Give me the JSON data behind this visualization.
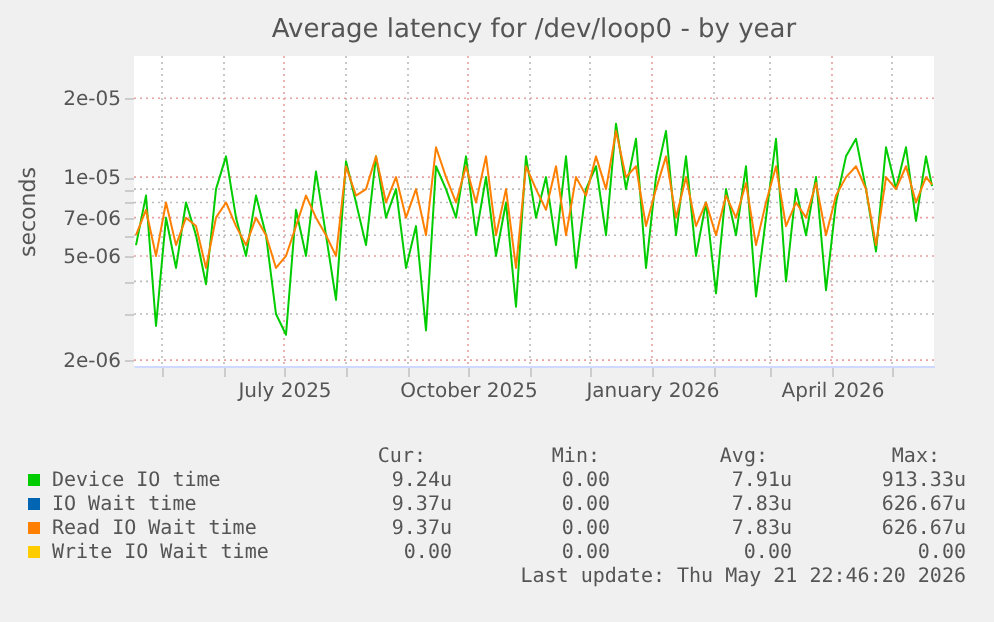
{
  "chart_data": {
    "type": "line",
    "title": "Average latency for /dev/loop0 - by year",
    "ylabel": "seconds",
    "log": true,
    "grid": true,
    "legend": "bottom",
    "line_style": "solid",
    "marker": "none",
    "x": [
      "2025-04-18",
      "2025-04-23",
      "2025-04-28",
      "2025-05-03",
      "2025-05-08",
      "2025-05-13",
      "2025-05-18",
      "2025-05-23",
      "2025-05-28",
      "2025-06-02",
      "2025-06-07",
      "2025-06-12",
      "2025-06-17",
      "2025-06-22",
      "2025-06-27",
      "2025-07-02",
      "2025-07-07",
      "2025-07-12",
      "2025-07-17",
      "2025-07-22",
      "2025-07-27",
      "2025-08-01",
      "2025-08-06",
      "2025-08-11",
      "2025-08-16",
      "2025-08-21",
      "2025-08-26",
      "2025-08-31",
      "2025-09-05",
      "2025-09-10",
      "2025-09-15",
      "2025-09-20",
      "2025-09-25",
      "2025-09-30",
      "2025-10-05",
      "2025-10-10",
      "2025-10-15",
      "2025-10-20",
      "2025-10-25",
      "2025-10-30",
      "2025-11-04",
      "2025-11-09",
      "2025-11-14",
      "2025-11-19",
      "2025-11-24",
      "2025-11-29",
      "2025-12-04",
      "2025-12-09",
      "2025-12-14",
      "2025-12-19",
      "2025-12-24",
      "2025-12-29",
      "2026-01-03",
      "2026-01-08",
      "2026-01-13",
      "2026-01-18",
      "2026-01-23",
      "2026-01-28",
      "2026-02-02",
      "2026-02-07",
      "2026-02-12",
      "2026-02-17",
      "2026-02-22",
      "2026-02-27",
      "2026-03-04",
      "2026-03-09",
      "2026-03-14",
      "2026-03-19",
      "2026-03-24",
      "2026-03-29",
      "2026-04-03",
      "2026-04-08",
      "2026-04-13",
      "2026-04-18",
      "2026-04-23",
      "2026-04-28",
      "2026-05-03",
      "2026-05-08",
      "2026-05-13",
      "2026-05-18",
      "2026-05-21"
    ],
    "series": [
      {
        "name": "Device IO time",
        "color": "#00cc00",
        "values": [
          5.5e-06,
          8.5e-06,
          2.7e-06,
          7e-06,
          4.5e-06,
          8e-06,
          6e-06,
          3.9e-06,
          9e-06,
          1.2e-05,
          7e-06,
          5e-06,
          8.5e-06,
          6e-06,
          3e-06,
          2.5e-06,
          7.5e-06,
          5e-06,
          1.05e-05,
          6e-06,
          3.4e-06,
          1.15e-05,
          8e-06,
          5.5e-06,
          1.2e-05,
          7e-06,
          9e-06,
          4.5e-06,
          6.5e-06,
          2.6e-06,
          1.1e-05,
          9e-06,
          7e-06,
          1.2e-05,
          6e-06,
          1e-05,
          5e-06,
          8e-06,
          3.2e-06,
          1.2e-05,
          7e-06,
          1e-05,
          5.5e-06,
          1.2e-05,
          4.5e-06,
          9e-06,
          1.1e-05,
          6e-06,
          1.6e-05,
          9e-06,
          1.4e-05,
          4.5e-06,
          1e-05,
          1.5e-05,
          6e-06,
          1.2e-05,
          5e-06,
          8e-06,
          3.6e-06,
          9e-06,
          6e-06,
          1.1e-05,
          3.5e-06,
          7e-06,
          1.4e-05,
          4e-06,
          9e-06,
          6e-06,
          1e-05,
          3.7e-06,
          8e-06,
          1.2e-05,
          1.4e-05,
          9e-06,
          5.2e-06,
          1.3e-05,
          9e-06,
          1.3e-05,
          6.8e-06,
          1.2e-05,
          9.24e-06
        ]
      },
      {
        "name": "IO Wait time",
        "color": "#0066b3",
        "values": [
          null,
          null,
          null,
          null,
          null,
          null,
          null,
          null,
          null,
          null,
          null,
          null,
          null,
          null,
          null,
          null,
          null,
          null,
          null,
          null,
          null,
          null,
          null,
          null,
          null,
          null,
          null,
          null,
          null,
          null,
          null,
          null,
          null,
          null,
          null,
          null,
          null,
          null,
          null,
          null,
          null,
          null,
          null,
          null,
          null,
          null,
          null,
          null,
          null,
          null,
          null,
          null,
          null,
          null,
          null,
          null,
          null,
          null,
          null,
          null,
          null,
          null,
          null,
          null,
          null,
          null,
          null,
          null,
          null,
          null,
          null,
          null,
          null,
          null,
          null,
          null,
          null,
          null,
          null,
          null,
          null
        ]
      },
      {
        "name": "Read IO Wait time",
        "color": "#ff8000",
        "values": [
          6e-06,
          7.5e-06,
          5e-06,
          8e-06,
          5.5e-06,
          7e-06,
          6.5e-06,
          4.5e-06,
          7e-06,
          8e-06,
          6.5e-06,
          5.5e-06,
          7e-06,
          6e-06,
          4.5e-06,
          5e-06,
          6.5e-06,
          8.5e-06,
          7e-06,
          6e-06,
          5e-06,
          1.1e-05,
          8.5e-06,
          9e-06,
          1.2e-05,
          8e-06,
          1e-05,
          7e-06,
          9e-06,
          6e-06,
          1.3e-05,
          1e-05,
          8e-06,
          1.1e-05,
          8e-06,
          1.2e-05,
          6e-06,
          9e-06,
          4.5e-06,
          1.1e-05,
          9e-06,
          7.5e-06,
          1.1e-05,
          6e-06,
          1e-05,
          8.5e-06,
          1.2e-05,
          9e-06,
          1.5e-05,
          1e-05,
          1.1e-05,
          6.5e-06,
          9e-06,
          1.2e-05,
          7e-06,
          1e-05,
          6.5e-06,
          8e-06,
          6e-06,
          8.5e-06,
          7e-06,
          9.5e-06,
          5.5e-06,
          8e-06,
          1.1e-05,
          6.5e-06,
          8e-06,
          7e-06,
          9.5e-06,
          6e-06,
          8.5e-06,
          1e-05,
          1.1e-05,
          9e-06,
          5.5e-06,
          1e-05,
          9e-06,
          1.1e-05,
          8e-06,
          1e-05,
          9.37e-06
        ]
      },
      {
        "name": "Write IO Wait time",
        "color": "#ffcc00",
        "values": [
          null,
          null,
          null,
          null,
          null,
          null,
          null,
          null,
          null,
          null,
          null,
          null,
          null,
          null,
          null,
          null,
          null,
          null,
          null,
          null,
          null,
          null,
          null,
          null,
          null,
          null,
          null,
          null,
          null,
          null,
          null,
          null,
          null,
          null,
          null,
          null,
          null,
          null,
          null,
          null,
          null,
          null,
          null,
          null,
          null,
          null,
          null,
          null,
          null,
          null,
          null,
          null,
          null,
          null,
          null,
          null,
          null,
          null,
          null,
          null,
          null,
          null,
          null,
          null,
          null,
          null,
          null,
          null,
          null,
          null,
          null,
          null,
          null,
          null,
          null,
          null,
          null,
          null,
          null,
          null,
          null
        ]
      }
    ],
    "xlim": [
      "2025-04-17",
      "2026-05-22"
    ],
    "xticks": [
      {
        "value": "2025-05-01",
        "label": null
      },
      {
        "value": "2025-06-01",
        "label": null
      },
      {
        "value": "2025-07-01",
        "label": "July 2025"
      },
      {
        "value": "2025-08-01",
        "label": null
      },
      {
        "value": "2025-09-01",
        "label": null
      },
      {
        "value": "2025-10-01",
        "label": "October 2025"
      },
      {
        "value": "2025-11-01",
        "label": null
      },
      {
        "value": "2025-12-01",
        "label": null
      },
      {
        "value": "2026-01-01",
        "label": "January 2026"
      },
      {
        "value": "2026-02-01",
        "label": null
      },
      {
        "value": "2026-03-01",
        "label": null
      },
      {
        "value": "2026-04-01",
        "label": "April 2026"
      },
      {
        "value": "2026-05-01",
        "label": null
      }
    ],
    "ylim": [
      1.9e-06,
      2.9e-05
    ],
    "yticks": [
      {
        "value": 2e-06,
        "label": "2e-06"
      },
      {
        "value": 3e-06,
        "label": null
      },
      {
        "value": 4e-06,
        "label": null
      },
      {
        "value": 5e-06,
        "label": "5e-06"
      },
      {
        "value": 6e-06,
        "label": null
      },
      {
        "value": 7e-06,
        "label": "7e-06"
      },
      {
        "value": 8e-06,
        "label": null
      },
      {
        "value": 9e-06,
        "label": null
      },
      {
        "value": 1e-05,
        "label": "1e-05"
      },
      {
        "value": 2e-05,
        "label": "2e-05"
      }
    ],
    "annotations": [
      "Cur:",
      "Min:",
      "Avg:",
      "Max:",
      "9.24u",
      "0.00",
      "7.91u",
      "913.33u",
      "9.37u",
      "0.00",
      "7.83u",
      "626.67u",
      "9.37u",
      "0.00",
      "7.83u",
      "626.67u",
      "0.00",
      "0.00",
      "0.00",
      "0.00",
      "Last update: Thu May 21 22:46:20 2026"
    ]
  }
}
